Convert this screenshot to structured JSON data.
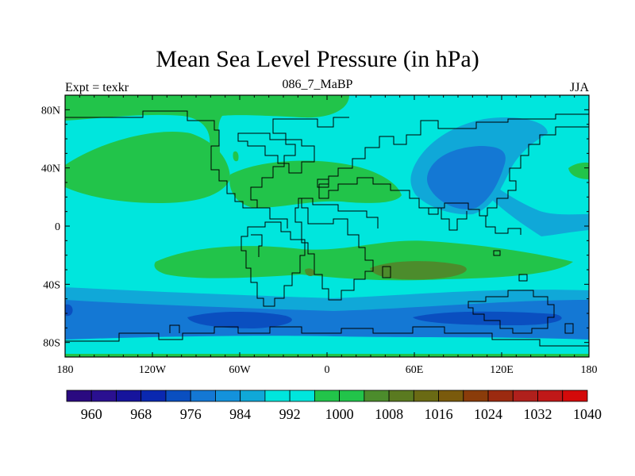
{
  "title": "Mean Sea Level Pressure (in hPa)",
  "subtitle_left": "Expt = texkr",
  "subtitle_center": "086_7_MaBP",
  "subtitle_right": "JJA",
  "map": {
    "type": "contour-map",
    "projection": "cylindrical-equidistant",
    "lon_range": [
      -180,
      180
    ],
    "lat_range": [
      -90,
      90
    ],
    "lon_ticks": [
      "180",
      "120W",
      "60W",
      "0",
      "60E",
      "120E",
      "180"
    ],
    "lat_ticks": [
      "80N",
      "40N",
      "0",
      "40S",
      "80S"
    ],
    "colors": {
      "ocean_1000": "#00e6dd",
      "high_1008": "#22c44a",
      "high_1016": "#4c8c2c",
      "low_992": "#10a8d8",
      "low_984": "#1478d4",
      "low_976": "#0a4fc0",
      "coast": "#000000"
    }
  },
  "colorbar": {
    "labels": [
      "960",
      "968",
      "976",
      "984",
      "992",
      "1000",
      "1008",
      "1016",
      "1024",
      "1032",
      "1040"
    ],
    "colors": [
      "#2a0a80",
      "#2a1090",
      "#16149c",
      "#0a28b0",
      "#0a4fc0",
      "#1478d4",
      "#1492dc",
      "#10a8d8",
      "#00e6dd",
      "#00e6dd",
      "#22c44a",
      "#22c44a",
      "#4c8c2c",
      "#5a7a20",
      "#6a6a14",
      "#7a5a0c",
      "#8a3c0a",
      "#9c2a10",
      "#b0201c",
      "#c01818",
      "#d40a0a"
    ]
  }
}
